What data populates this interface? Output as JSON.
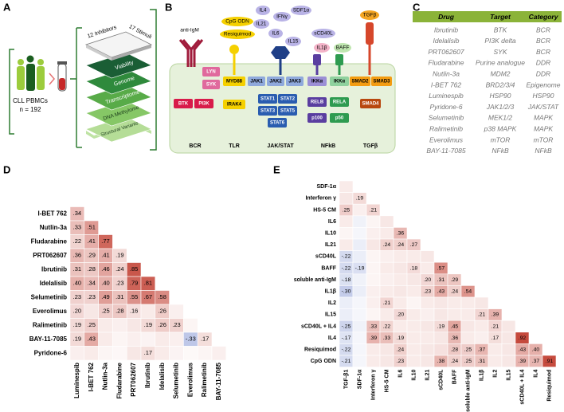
{
  "panel_labels": [
    "A",
    "B",
    "C",
    "D",
    "E"
  ],
  "panel_a": {
    "cohort": "CLL PBMCs",
    "n": "n = 192",
    "inhibitors": "12 Inhibitors",
    "stimuli": "17 Stimuli",
    "layers": [
      "Viability",
      "Genome",
      "Transcriptome",
      "DNA Methylome",
      "Structural Variants"
    ]
  },
  "panel_b": {
    "ligands": [
      "anti-IgM",
      "CpG ODN",
      "Resiquimod",
      "IL4",
      "IFNγ",
      "SDF1α",
      "IL21",
      "IL6",
      "IL15",
      "sCD40L",
      "IL1β",
      "BAFF",
      "TGFβ"
    ],
    "proteins": [
      "LYN",
      "SYK",
      "BTK",
      "PI3K",
      "MYD88",
      "IRAK4",
      "JAK1",
      "JAK2",
      "JAK3",
      "STAT1",
      "STAT2",
      "STAT3",
      "STAT5",
      "STAT6",
      "IKKα",
      "IKKα",
      "RELB",
      "p100",
      "RELA",
      "p50",
      "SMAD2",
      "SMAD3",
      "SMAD4"
    ],
    "pathways": [
      "BCR",
      "TLR",
      "JAK/STAT",
      "NFkB",
      "TGFβ"
    ]
  },
  "panel_c": {
    "header": [
      "Drug",
      "Target",
      "Category"
    ],
    "rows": [
      [
        "Ibrutinib",
        "BTK",
        "BCR"
      ],
      [
        "Idelalisib",
        "PI3K delta",
        "BCR"
      ],
      [
        "PRT062607",
        "SYK",
        "BCR"
      ],
      [
        "Fludarabine",
        "Purine analogue",
        "DDR"
      ],
      [
        "Nutlin-3a",
        "MDM2",
        "DDR"
      ],
      [
        "I-BET 762",
        "BRD2/3/4",
        "Epigenome"
      ],
      [
        "Luminespib",
        "HSP90",
        "HSP90"
      ],
      [
        "Pyridone-6",
        "JAK1/2/3",
        "JAK/STAT"
      ],
      [
        "Selumetinib",
        "MEK1/2",
        "MAPK"
      ],
      [
        "Ralimetinib",
        "p38 MAPK",
        "MAPK"
      ],
      [
        "Everolimus",
        "mTOR",
        "mTOR"
      ],
      [
        "BAY-11-7085",
        "NFkB",
        "NFkB"
      ]
    ]
  },
  "panel_d": {
    "type": "heatmap",
    "positive_color": "#c0392b",
    "negative_color": "#3a56b8",
    "rows": [
      "I-BET 762",
      "Nutlin-3a",
      "Fludarabine",
      "PRT062607",
      "Ibrutinib",
      "Idelalisib",
      "Selumetinib",
      "Everolimus",
      "Ralimetinib",
      "BAY-11-7085",
      "Pyridone-6"
    ],
    "columns": [
      "Luminespib",
      "I-BET 762",
      "Nutlin-3a",
      "Fludarabine",
      "PRT062607",
      "Ibrutinib",
      "Idelalisib",
      "Selumetinib",
      "Everolimus",
      "Ralimetinib",
      "BAY-11-7085"
    ],
    "values": [
      [
        0.34
      ],
      [
        0.33,
        0.51
      ],
      [
        0.22,
        0.41,
        0.77
      ],
      [
        0.36,
        0.29,
        0.41,
        0.19
      ],
      [
        0.31,
        0.28,
        0.46,
        0.24,
        0.85
      ],
      [
        0.4,
        0.34,
        0.4,
        0.23,
        0.79,
        0.81
      ],
      [
        0.23,
        0.23,
        0.49,
        0.31,
        0.55,
        0.67,
        0.58
      ],
      [
        0.2,
        0.12,
        0.25,
        0.28,
        0.16,
        0.1,
        0.26,
        0.08
      ],
      [
        0.19,
        0.25,
        0.1,
        0.08,
        0.12,
        0.19,
        0.26,
        0.23,
        0.05
      ],
      [
        0.19,
        0.43,
        0.1,
        0.05,
        0.08,
        0.06,
        0.1,
        0.08,
        -0.33,
        0.17
      ],
      [
        0.08,
        0.1,
        0.05,
        0.04,
        0.12,
        0.17,
        0.1,
        0.06,
        0.03,
        0.05,
        0.08
      ]
    ],
    "value_labels": [
      [
        ".34"
      ],
      [
        ".33",
        ".51"
      ],
      [
        ".22",
        ".41",
        ".77"
      ],
      [
        ".36",
        ".29",
        ".41",
        ".19"
      ],
      [
        ".31",
        ".28",
        ".46",
        ".24",
        ".85"
      ],
      [
        ".40",
        ".34",
        ".40",
        ".23",
        ".79",
        ".81"
      ],
      [
        ".23",
        ".23",
        ".49",
        ".31",
        ".55",
        ".67",
        ".58"
      ],
      [
        ".20",
        null,
        ".25",
        ".28",
        ".16",
        null,
        ".26",
        null
      ],
      [
        ".19",
        ".25",
        null,
        null,
        null,
        ".19",
        ".26",
        ".23",
        null
      ],
      [
        ".19",
        ".43",
        null,
        null,
        null,
        null,
        null,
        null,
        "-.33",
        ".17"
      ],
      [
        null,
        null,
        null,
        null,
        null,
        ".17",
        null,
        null,
        null,
        null,
        null
      ]
    ]
  },
  "panel_e": {
    "type": "heatmap",
    "positive_color": "#c0392b",
    "negative_color": "#3a56b8",
    "rows": [
      "SDF-1α",
      "Interferon γ",
      "HS-5 CM",
      "IL6",
      "IL10",
      "IL21",
      "sCD40L",
      "BAFF",
      "soluble anti-IgM",
      "IL1β",
      "IL2",
      "IL15",
      "sCD40L + IL4",
      "IL4",
      "Resiquimod",
      "CpG ODN"
    ],
    "columns": [
      "TGF-β1",
      "SDF-1α",
      "Interferon γ",
      "HS-5 CM",
      "IL6",
      "IL10",
      "IL21",
      "sCD40L",
      "BAFF",
      "soluble anti-IgM",
      "IL1β",
      "IL2",
      "IL15",
      "sCD40L + IL4",
      "IL4",
      "Resiquimod"
    ],
    "values": [
      [
        0.1
      ],
      [
        0.12,
        0.19
      ],
      [
        0.25,
        0.08,
        0.21
      ],
      [
        0.1,
        -0.08,
        0.05,
        0.12
      ],
      [
        0.05,
        -0.05,
        0.08,
        0.1,
        0.36
      ],
      [
        0.1,
        -0.1,
        0.12,
        0.24,
        0.24,
        0.27
      ],
      [
        -0.22,
        -0.1,
        0.05,
        0.08,
        0.1,
        0.1,
        0.12
      ],
      [
        -0.22,
        -0.19,
        0.05,
        0.1,
        0.12,
        0.18,
        0.1,
        0.57
      ],
      [
        -0.18,
        -0.08,
        0.05,
        0.08,
        0.1,
        0.12,
        0.2,
        0.31,
        0.29
      ],
      [
        -0.3,
        -0.1,
        0.08,
        0.1,
        0.12,
        0.1,
        0.23,
        0.43,
        0.24,
        0.54
      ],
      [
        -0.1,
        -0.05,
        0.08,
        0.21,
        0.1,
        0.05,
        0.1,
        0.12,
        0.1,
        0.1,
        0.12
      ],
      [
        -0.1,
        -0.05,
        0.05,
        0.1,
        0.2,
        0.1,
        0.08,
        0.12,
        0.1,
        0.1,
        0.21,
        0.39
      ],
      [
        -0.25,
        -0.08,
        0.33,
        0.22,
        0.1,
        0.1,
        0.12,
        0.19,
        0.45,
        0.12,
        0.1,
        0.21,
        0.12
      ],
      [
        -0.17,
        -0.05,
        0.39,
        0.33,
        0.19,
        0.1,
        0.1,
        0.12,
        0.36,
        0.1,
        0.08,
        0.17,
        0.12,
        0.92
      ],
      [
        -0.22,
        -0.05,
        0.1,
        0.12,
        0.24,
        0.1,
        0.12,
        0.15,
        0.28,
        0.25,
        0.37,
        0.1,
        0.12,
        0.43,
        0.4
      ],
      [
        -0.21,
        -0.05,
        0.1,
        0.12,
        0.23,
        0.1,
        0.12,
        0.38,
        0.24,
        0.25,
        0.31,
        0.1,
        0.12,
        0.39,
        0.37,
        0.91
      ]
    ],
    "value_labels": [
      [
        null
      ],
      [
        null,
        ".19"
      ],
      [
        ".25",
        null,
        ".21"
      ],
      [
        null,
        null,
        null,
        null
      ],
      [
        null,
        null,
        null,
        null,
        ".36"
      ],
      [
        null,
        null,
        null,
        ".24",
        ".24",
        ".27"
      ],
      [
        "-.22",
        null,
        null,
        null,
        null,
        null,
        null
      ],
      [
        "-.22",
        "-.19",
        null,
        null,
        null,
        ".18",
        null,
        ".57"
      ],
      [
        "-.18",
        null,
        null,
        null,
        null,
        null,
        ".20",
        ".31",
        ".29"
      ],
      [
        "-.30",
        null,
        null,
        null,
        null,
        null,
        ".23",
        ".43",
        ".24",
        ".54"
      ],
      [
        null,
        null,
        null,
        ".21",
        null,
        null,
        null,
        null,
        null,
        null,
        null
      ],
      [
        null,
        null,
        null,
        null,
        ".20",
        null,
        null,
        null,
        null,
        null,
        ".21",
        ".39"
      ],
      [
        "-.25",
        null,
        ".33",
        ".22",
        null,
        null,
        null,
        ".19",
        ".45",
        null,
        null,
        ".21",
        null
      ],
      [
        "-.17",
        null,
        ".39",
        ".33",
        ".19",
        null,
        null,
        null,
        ".36",
        null,
        null,
        ".17",
        null,
        ".92"
      ],
      [
        "-.22",
        null,
        null,
        null,
        ".24",
        null,
        null,
        null,
        ".28",
        ".25",
        ".37",
        null,
        null,
        ".43",
        ".40"
      ],
      [
        "-.21",
        null,
        null,
        null,
        ".23",
        null,
        null,
        ".38",
        ".24",
        ".25",
        ".31",
        null,
        null,
        ".39",
        ".37",
        ".91"
      ]
    ]
  }
}
